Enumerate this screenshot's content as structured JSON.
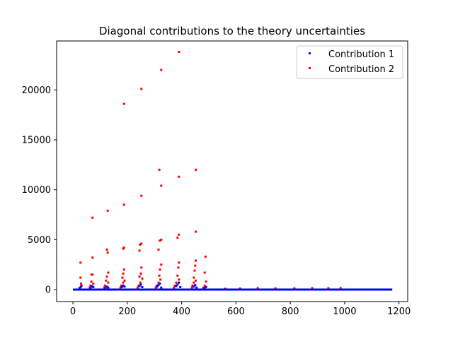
{
  "chart_data": {
    "type": "scatter",
    "title": "Diagonal contributions to the theory uncertainties",
    "xlabel": "",
    "ylabel": "",
    "xlim": [
      -60,
      1232
    ],
    "ylim": [
      -1200,
      24900
    ],
    "xticks": [
      0,
      200,
      400,
      600,
      800,
      1000,
      1200
    ],
    "yticks": [
      0,
      5000,
      10000,
      15000,
      20000
    ],
    "legend_position": "top-right",
    "series": [
      {
        "name": "Contribution 1",
        "color": "#0000ff",
        "baseline_range": [
          0,
          1175
        ],
        "points": [
          [
            25,
            150
          ],
          [
            30,
            300
          ],
          [
            65,
            200
          ],
          [
            70,
            350
          ],
          [
            75,
            250
          ],
          [
            120,
            150
          ],
          [
            125,
            300
          ],
          [
            130,
            200
          ],
          [
            180,
            250
          ],
          [
            185,
            400
          ],
          [
            190,
            300
          ],
          [
            245,
            350
          ],
          [
            250,
            500
          ],
          [
            255,
            250
          ],
          [
            310,
            300
          ],
          [
            315,
            450
          ],
          [
            320,
            600
          ],
          [
            325,
            200
          ],
          [
            380,
            350
          ],
          [
            385,
            500
          ],
          [
            390,
            700
          ],
          [
            395,
            250
          ],
          [
            445,
            300
          ],
          [
            450,
            450
          ],
          [
            455,
            200
          ],
          [
            485,
            150
          ],
          [
            490,
            250
          ]
        ]
      },
      {
        "name": "Contribution 2",
        "color": "#ff0000",
        "baseline_range": [
          0,
          1175
        ],
        "points": [
          [
            390,
            23800
          ],
          [
            325,
            22000
          ],
          [
            252,
            20100
          ],
          [
            188,
            18600
          ],
          [
            318,
            12000
          ],
          [
            452,
            12000
          ],
          [
            390,
            11300
          ],
          [
            325,
            10400
          ],
          [
            252,
            9400
          ],
          [
            188,
            8500
          ],
          [
            128,
            7900
          ],
          [
            72,
            7200
          ],
          [
            452,
            5800
          ],
          [
            390,
            5500
          ],
          [
            385,
            5200
          ],
          [
            325,
            5000
          ],
          [
            320,
            4900
          ],
          [
            252,
            4600
          ],
          [
            247,
            4500
          ],
          [
            188,
            4200
          ],
          [
            185,
            4100
          ],
          [
            315,
            4000
          ],
          [
            125,
            4000
          ],
          [
            245,
            3900
          ],
          [
            128,
            3700
          ],
          [
            488,
            3300
          ],
          [
            72,
            3200
          ],
          [
            452,
            2900
          ],
          [
            28,
            2700
          ],
          [
            390,
            2700
          ],
          [
            325,
            2500
          ],
          [
            450,
            2400
          ],
          [
            252,
            2200
          ],
          [
            388,
            2200
          ],
          [
            188,
            2000
          ],
          [
            320,
            2000
          ],
          [
            448,
            1900
          ],
          [
            130,
            1700
          ],
          [
            485,
            1700
          ],
          [
            250,
            1600
          ],
          [
            68,
            1500
          ],
          [
            185,
            1600
          ],
          [
            72,
            1500
          ],
          [
            318,
            1400
          ],
          [
            385,
            1400
          ],
          [
            245,
            1300
          ],
          [
            125,
            1300
          ],
          [
            28,
            1200
          ],
          [
            182,
            1200
          ],
          [
            445,
            1200
          ],
          [
            255,
            1100
          ],
          [
            390,
            1000
          ],
          [
            68,
            800
          ],
          [
            122,
            900
          ],
          [
            190,
            900
          ],
          [
            322,
            1000
          ],
          [
            452,
            900
          ],
          [
            490,
            800
          ],
          [
            30,
            600
          ],
          [
            75,
            600
          ],
          [
            130,
            700
          ],
          [
            185,
            700
          ],
          [
            248,
            700
          ],
          [
            315,
            700
          ],
          [
            380,
            700
          ],
          [
            445,
            700
          ],
          [
            32,
            400
          ],
          [
            65,
            400
          ],
          [
            118,
            400
          ],
          [
            178,
            400
          ],
          [
            242,
            400
          ],
          [
            308,
            400
          ],
          [
            375,
            400
          ],
          [
            440,
            400
          ],
          [
            485,
            400
          ],
          [
            25,
            200
          ],
          [
            62,
            200
          ],
          [
            115,
            200
          ],
          [
            175,
            200
          ],
          [
            238,
            200
          ],
          [
            305,
            200
          ],
          [
            372,
            200
          ],
          [
            438,
            200
          ],
          [
            480,
            200
          ],
          [
            560,
            80
          ],
          [
            615,
            100
          ],
          [
            680,
            150
          ],
          [
            745,
            120
          ],
          [
            815,
            130
          ],
          [
            880,
            150
          ],
          [
            940,
            140
          ],
          [
            985,
            150
          ]
        ]
      }
    ]
  }
}
